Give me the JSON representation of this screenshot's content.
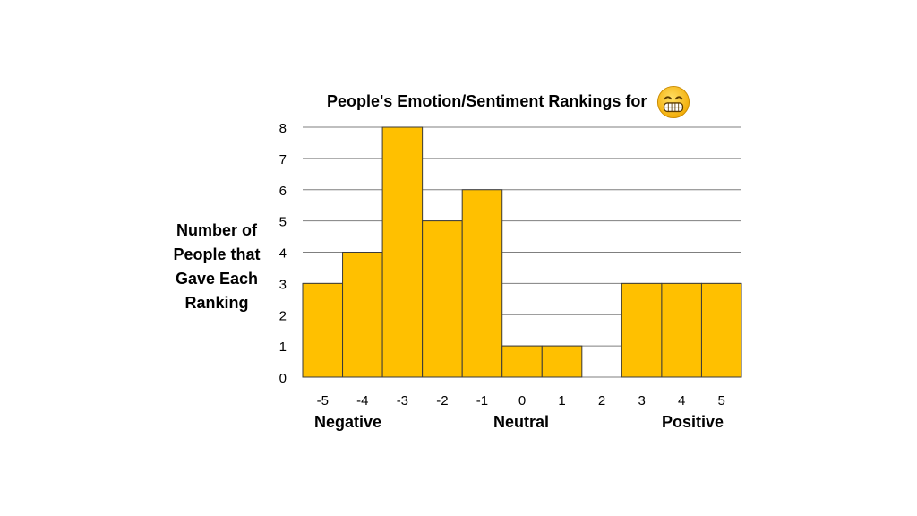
{
  "chart_data": {
    "type": "bar",
    "title": "People's Emotion/Sentiment Rankings for",
    "title_icon": "grinning-face-with-smiling-eyes-emoji",
    "ylabel_lines": [
      "Number of",
      "People that",
      "Gave Each",
      "Ranking"
    ],
    "categories": [
      "-5",
      "-4",
      "-3",
      "-2",
      "-1",
      "0",
      "1",
      "2",
      "3",
      "4",
      "5"
    ],
    "values": [
      3,
      4,
      8,
      5,
      6,
      1,
      1,
      0,
      3,
      3,
      3
    ],
    "ylim": [
      0,
      8
    ],
    "yticks": [
      "0",
      "1",
      "2",
      "3",
      "4",
      "5",
      "6",
      "7",
      "8"
    ],
    "grid": true,
    "group_labels": {
      "negative": "Negative",
      "neutral": "Neutral",
      "positive": "Positive"
    },
    "colors": {
      "bar": "#FFC000",
      "bar_edge": "#3a3a3a",
      "grid": "#7f7f7f"
    }
  }
}
